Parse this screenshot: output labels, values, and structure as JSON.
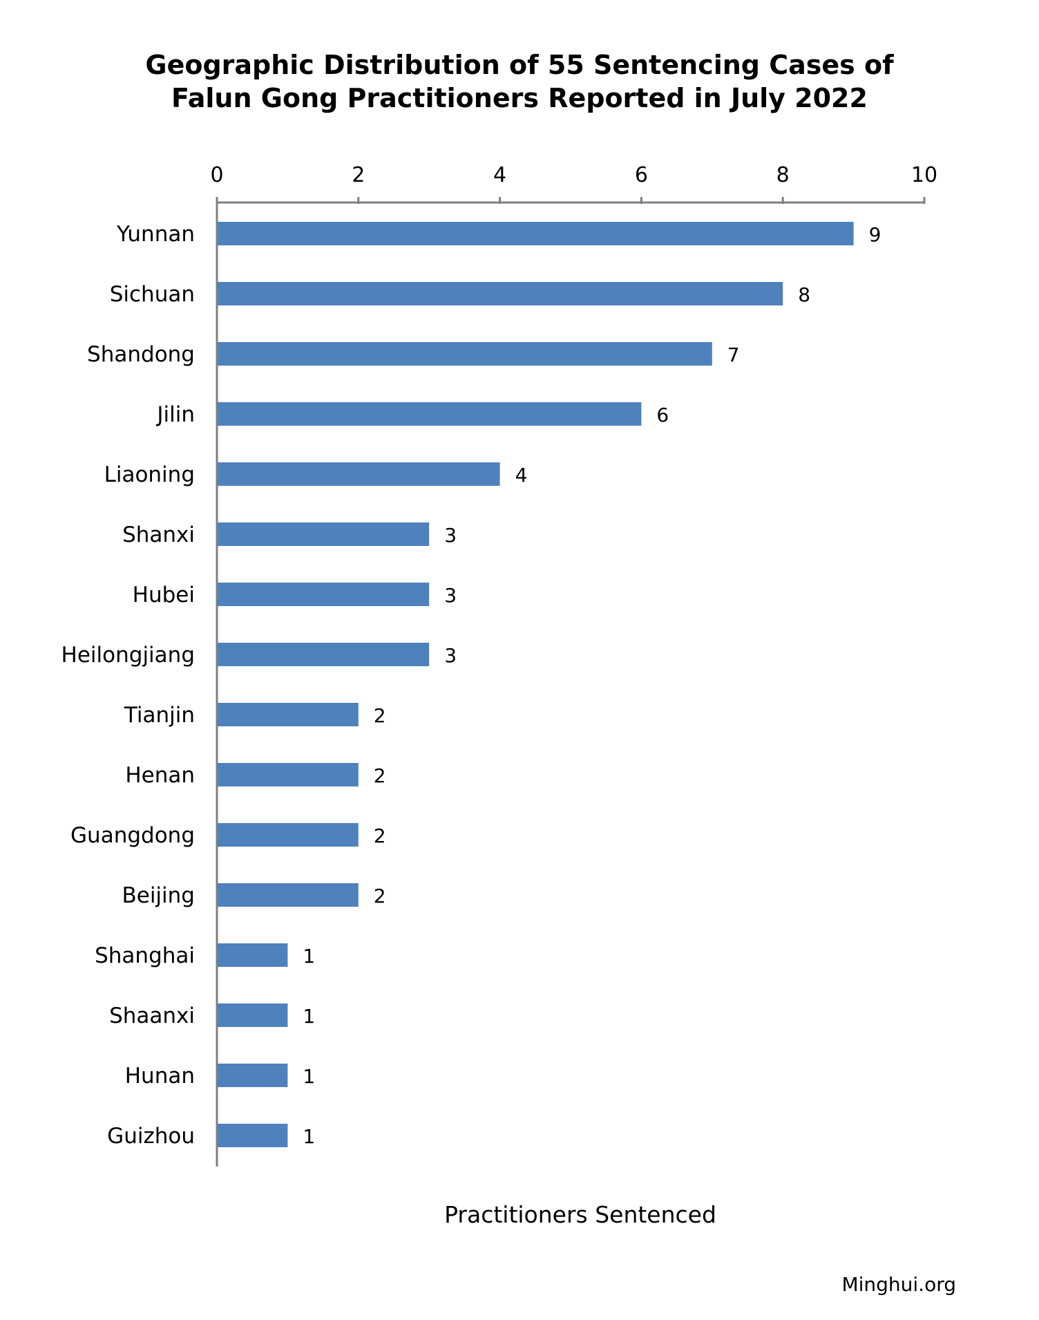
{
  "chart_data": {
    "type": "bar",
    "orientation": "horizontal",
    "title_lines": [
      "Geographic Distribution of 55 Sentencing Cases of",
      "Falun Gong Practitioners Reported in July 2022"
    ],
    "xlabel": "Practitioners Sentenced",
    "ylabel": "",
    "xlim": [
      0,
      10
    ],
    "x_ticks": [
      "0",
      "2",
      "4",
      "6",
      "8",
      "10"
    ],
    "x_axis_position": "top",
    "grid": false,
    "bar_color": "#4f81bd",
    "categories": [
      "Yunnan",
      "Sichuan",
      "Shandong",
      "Jilin",
      "Liaoning",
      "Shanxi",
      "Hubei",
      "Heilongjiang",
      "Tianjin",
      "Henan",
      "Guangdong",
      "Beijing",
      "Shanghai",
      "Shaanxi",
      "Hunan",
      "Guizhou"
    ],
    "values": [
      9,
      8,
      7,
      6,
      4,
      3,
      3,
      3,
      2,
      2,
      2,
      2,
      1,
      1,
      1,
      1
    ],
    "data_labels": [
      "9",
      "8",
      "7",
      "6",
      "4",
      "3",
      "3",
      "3",
      "2",
      "2",
      "2",
      "2",
      "1",
      "1",
      "1",
      "1"
    ]
  },
  "source": "Minghui.org"
}
